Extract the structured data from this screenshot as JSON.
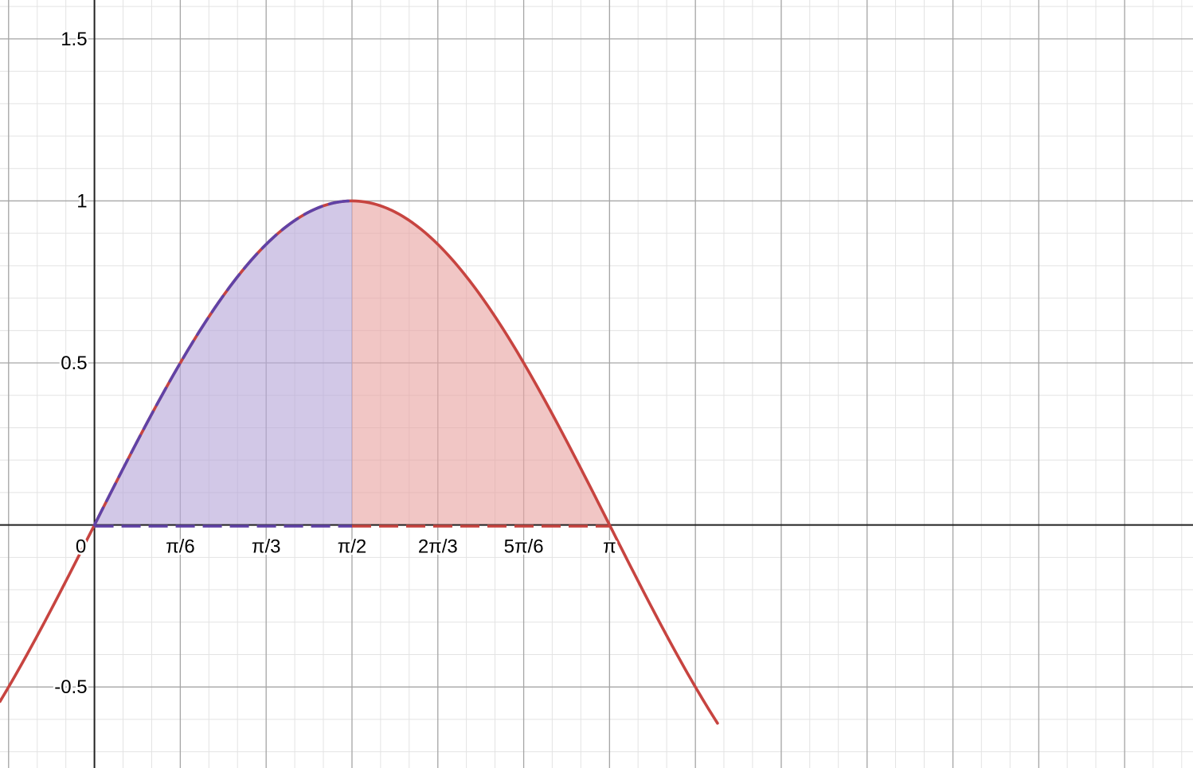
{
  "chart_data": {
    "type": "area",
    "title": "",
    "xlabel": "",
    "ylabel": "",
    "xlim": [
      -0.576,
      6.7
    ],
    "ylim": [
      -0.75,
      1.62
    ],
    "x_ticks": [
      {
        "value": 0,
        "label": "0"
      },
      {
        "value": 0.5236,
        "label": "π/6"
      },
      {
        "value": 1.0472,
        "label": "π/3"
      },
      {
        "value": 1.5708,
        "label": "π/2"
      },
      {
        "value": 2.0944,
        "label": "2π/3"
      },
      {
        "value": 2.618,
        "label": "5π/6"
      },
      {
        "value": 3.1416,
        "label": "π"
      }
    ],
    "y_ticks": [
      {
        "value": -0.5,
        "label": "-0.5"
      },
      {
        "value": 0.5,
        "label": "0.5"
      },
      {
        "value": 1,
        "label": "1"
      },
      {
        "value": 1.5,
        "label": "1.5"
      }
    ],
    "grid": true,
    "grid_minor_x": 0.1745,
    "grid_minor_y": 0.1,
    "series": [
      {
        "function": "sin(x)",
        "style": "solid",
        "x_range": [
          -0.576,
          3.8
        ],
        "color": "#c74440",
        "fill_range": [
          1.5708,
          3.1416
        ],
        "fill_color": "#e8a3a1",
        "x": [
          -0.576,
          -0.2618,
          0,
          0.2618,
          0.5236,
          0.7854,
          1.0472,
          1.309,
          1.5708,
          1.8326,
          2.0944,
          2.3562,
          2.618,
          2.8798,
          3.1416,
          3.4034,
          3.8
        ],
        "y": [
          -0.545,
          -0.259,
          0,
          0.259,
          0.5,
          0.707,
          0.866,
          0.966,
          1,
          0.966,
          0.866,
          0.707,
          0.5,
          0.259,
          0,
          -0.259,
          -0.612
        ]
      },
      {
        "function": "sin(x)",
        "style": "dashed",
        "x_range": [
          0,
          1.5708
        ],
        "color": "#6042a6",
        "fill_range": [
          0,
          1.5708
        ],
        "fill_color": "#b6a7d8",
        "x": [
          0,
          0.2618,
          0.5236,
          0.7854,
          1.0472,
          1.309,
          1.5708
        ],
        "y": [
          0,
          0.259,
          0.5,
          0.707,
          0.866,
          0.966,
          1
        ]
      }
    ]
  }
}
